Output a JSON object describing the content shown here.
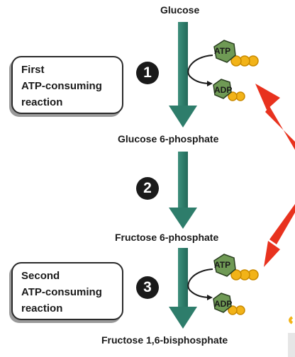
{
  "compounds": {
    "glucose": "Glucose",
    "glucose_6_phosphate": "Glucose 6-phosphate",
    "fructose_6_phosphate": "Fructose 6-phosphate",
    "fructose_1_6_bisphosphate": "Fructose 1,6-bisphosphate"
  },
  "callouts": {
    "first": [
      "First",
      "ATP-consuming",
      "reaction"
    ],
    "second": [
      "Second",
      "ATP-consuming",
      "reaction"
    ]
  },
  "steps": [
    "1",
    "2",
    "3"
  ],
  "molecules": {
    "atp": "ATP",
    "adp": "ADP"
  },
  "colors": {
    "arrow_teal": "#2e7d6b",
    "nucleotide_green": "#6f9a55",
    "phosphate_gold": "#f2b318",
    "red_arrow": "#e8321e"
  }
}
